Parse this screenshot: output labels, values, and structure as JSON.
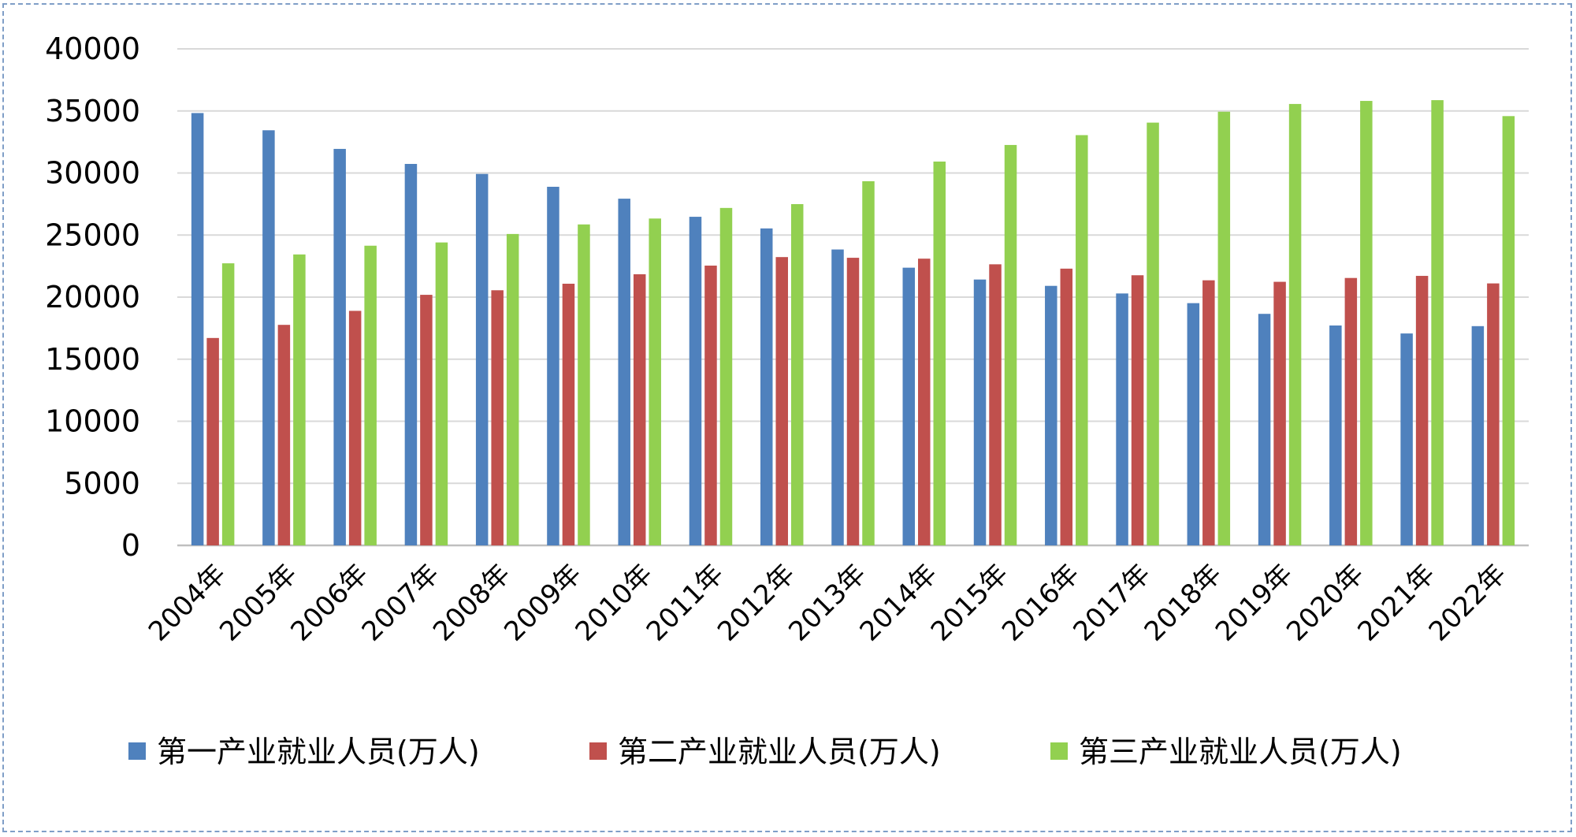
{
  "chart_data": {
    "type": "bar",
    "title": "",
    "xlabel": "",
    "ylabel": "",
    "ylim": [
      0,
      40000
    ],
    "yticks": [
      0,
      5000,
      10000,
      15000,
      20000,
      25000,
      30000,
      35000,
      40000
    ],
    "grid": true,
    "legend_position": "bottom",
    "categories": [
      "2004年",
      "2005年",
      "2006年",
      "2007年",
      "2008年",
      "2009年",
      "2010年",
      "2011年",
      "2012年",
      "2013年",
      "2014年",
      "2015年",
      "2016年",
      "2017年",
      "2018年",
      "2019年",
      "2020年",
      "2021年",
      "2022年"
    ],
    "series": [
      {
        "name": "第一产业就业人员(万人)",
        "color": "#4f81bd",
        "values": [
          34830,
          33442,
          31941,
          30731,
          29923,
          28890,
          27931,
          26472,
          25535,
          23838,
          22372,
          21418,
          20908,
          20295,
          19515,
          18652,
          17715,
          17072,
          17663
        ]
      },
      {
        "name": "第二产业就业人员(万人)",
        "color": "#c0504d",
        "values": [
          16709,
          17766,
          18894,
          20186,
          20553,
          21080,
          21842,
          22539,
          23226,
          23170,
          23099,
          22644,
          22295,
          21762,
          21356,
          21234,
          21543,
          21712,
          21105
        ]
      },
      {
        "name": "第三产业就业人员(万人)",
        "color": "#92d050",
        "values": [
          22724,
          23439,
          24143,
          24404,
          25087,
          25857,
          26332,
          27185,
          27493,
          29338,
          30921,
          32258,
          33050,
          34058,
          34938,
          35561,
          35806,
          35868,
          34583
        ]
      }
    ]
  }
}
